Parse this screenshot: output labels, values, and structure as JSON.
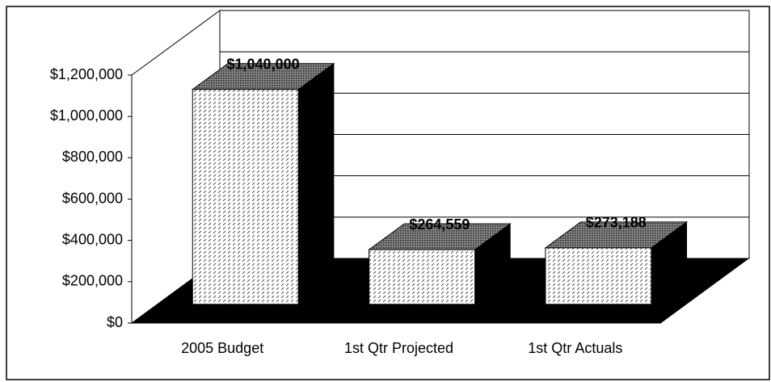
{
  "chart_data": {
    "type": "bar",
    "categories": [
      "2005 Budget",
      "1st Qtr Projected",
      "1st Qtr Actuals"
    ],
    "values": [
      1040000,
      264559,
      273188
    ],
    "value_labels": [
      "$1,040,000",
      "$264,559",
      "$273,188"
    ],
    "ylim": [
      0,
      1200000
    ],
    "yticks": [
      {
        "value": 0,
        "label": "$0"
      },
      {
        "value": 200000,
        "label": "$200,000"
      },
      {
        "value": 400000,
        "label": "$400,000"
      },
      {
        "value": 600000,
        "label": "$600,000"
      },
      {
        "value": 800000,
        "label": "$800,000"
      },
      {
        "value": 1000000,
        "label": "$1,000,000"
      },
      {
        "value": 1200000,
        "label": "$1,200,000"
      }
    ],
    "grid": true
  }
}
